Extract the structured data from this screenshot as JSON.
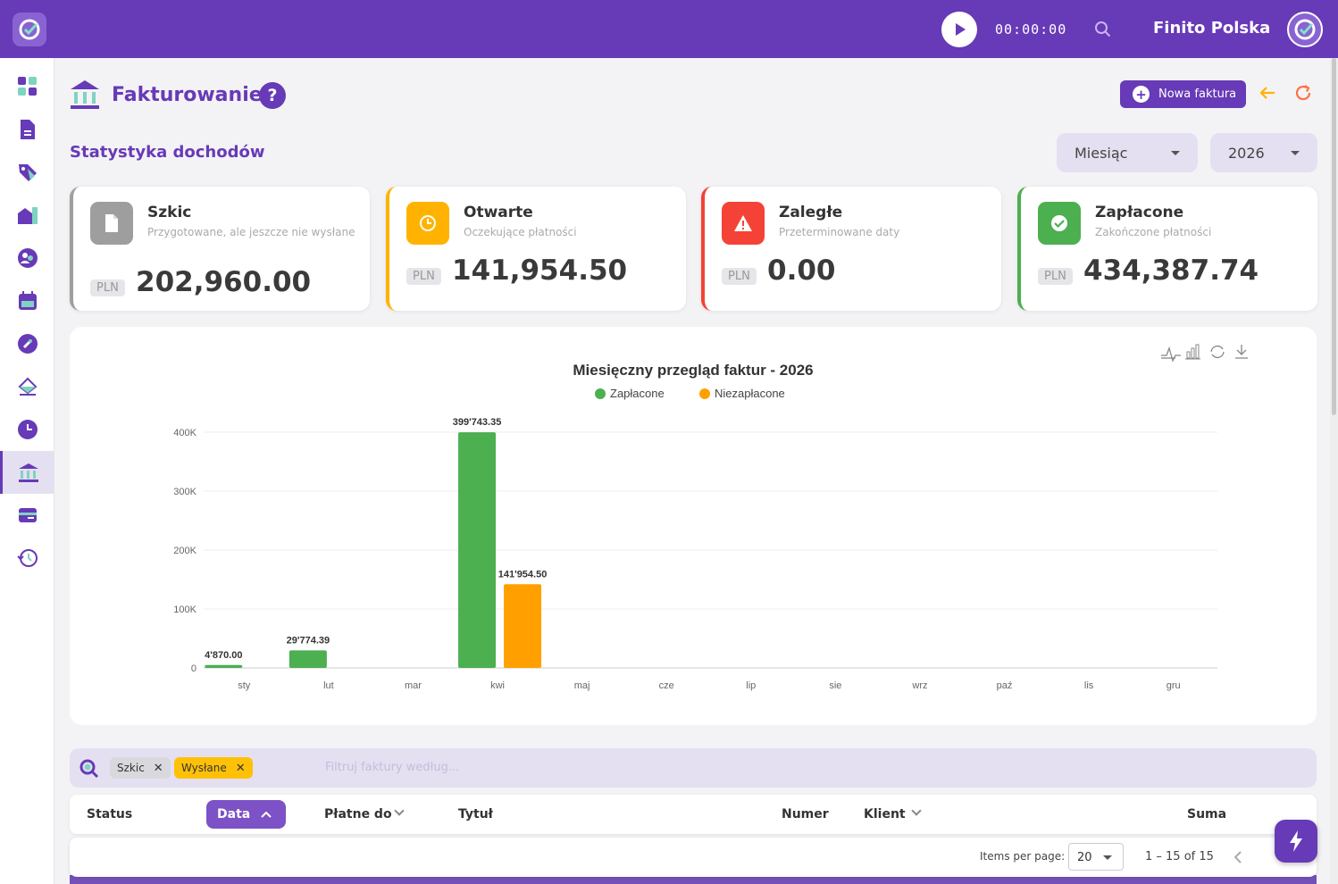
{
  "topbar": {
    "timer": "00:00:00",
    "company": "Finito Polska"
  },
  "sidebar": {
    "items": [
      "dashboard",
      "documents",
      "tags",
      "buildings",
      "contacts",
      "calendar",
      "tools",
      "inventory",
      "time",
      "invoicing",
      "payments",
      "history"
    ],
    "active": "invoicing"
  },
  "page": {
    "title": "Fakturowanie",
    "help": "?",
    "new_invoice": "Nowa faktura"
  },
  "stats": {
    "title": "Statystyka dochodów",
    "period_select": "Miesiąc",
    "year_select": "2026",
    "cards": [
      {
        "title": "Szkic",
        "subtitle": "Przygotowane, ale jeszcze nie wysłane",
        "currency": "PLN",
        "amount": "202,960.00",
        "color": "#9e9e9e"
      },
      {
        "title": "Otwarte",
        "subtitle": "Oczekujące płatności",
        "currency": "PLN",
        "amount": "141,954.50",
        "color": "#ffb300"
      },
      {
        "title": "Zaległe",
        "subtitle": "Przeterminowane daty",
        "currency": "PLN",
        "amount": "0.00",
        "color": "#f44336"
      },
      {
        "title": "Zapłacone",
        "subtitle": "Zakończone płatności",
        "currency": "PLN",
        "amount": "434,387.74",
        "color": "#4caf50"
      }
    ]
  },
  "chart_data": {
    "type": "bar",
    "title": "Miesięczny przegląd faktur - 2026",
    "categories": [
      "sty",
      "lut",
      "mar",
      "kwi",
      "maj",
      "cze",
      "lip",
      "sie",
      "wrz",
      "paź",
      "lis",
      "gru"
    ],
    "series": [
      {
        "name": "Zapłacone",
        "color": "#4caf50",
        "values": [
          4870.0,
          29774.39,
          0,
          399743.35,
          0,
          0,
          0,
          0,
          0,
          0,
          0,
          0
        ]
      },
      {
        "name": "Niezapłacone",
        "color": "#ffa000",
        "values": [
          0,
          0,
          0,
          141954.5,
          0,
          0,
          0,
          0,
          0,
          0,
          0,
          0
        ]
      }
    ],
    "data_labels": {
      "sty": "4'870.00",
      "lut": "29'774.39",
      "kwi": "399'743.35",
      "kwi_unpaid": "141'954.50"
    },
    "yticks": [
      "0",
      "100K",
      "200K",
      "300K",
      "400K"
    ],
    "ylim": [
      0,
      400000
    ],
    "legend": "top-center"
  },
  "filter": {
    "chips": [
      "Szkic",
      "Wysłane"
    ],
    "placeholder": "Filtruj faktury według..."
  },
  "table": {
    "columns": {
      "status": "Status",
      "date": "Data",
      "due": "Płatne do",
      "title": "Tytuł",
      "number": "Numer",
      "client": "Klient",
      "sum": "Suma"
    }
  },
  "paginator": {
    "label": "Items per page:",
    "per_page": "20",
    "range": "1 – 15 of 15"
  }
}
